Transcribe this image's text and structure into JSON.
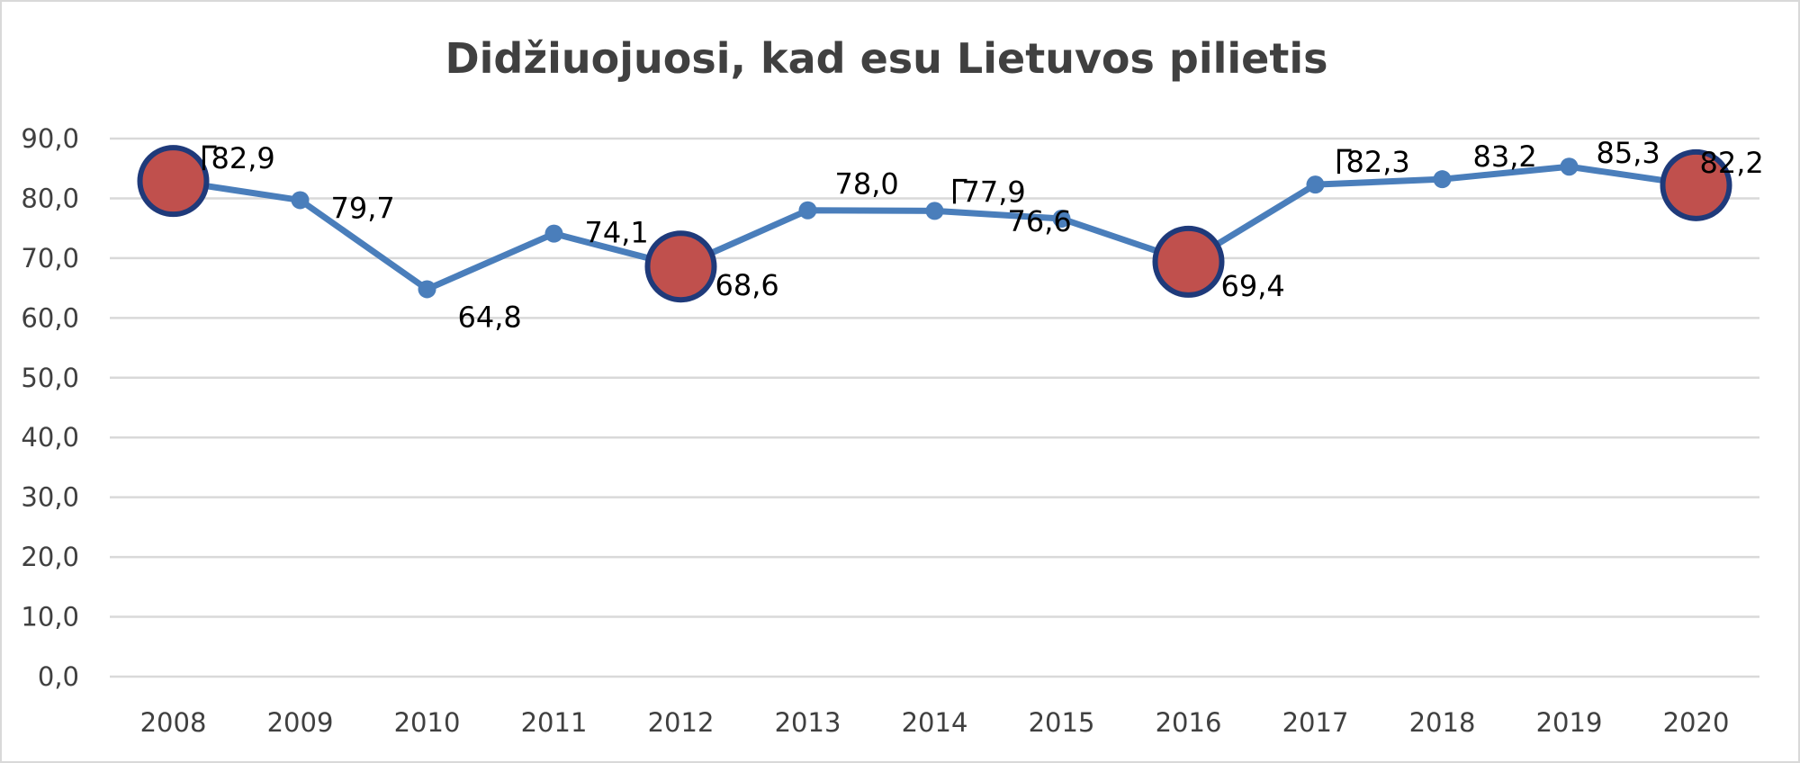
{
  "chart_data": {
    "type": "line",
    "title": "Didžiuojuosi, kad esu Lietuvos pilietis",
    "xlabel": "",
    "ylabel": "",
    "categories": [
      "2008",
      "2009",
      "2010",
      "2011",
      "2012",
      "2013",
      "2014",
      "2015",
      "2016",
      "2017",
      "2018",
      "2019",
      "2020"
    ],
    "series": [
      {
        "values": [
          82.9,
          79.7,
          64.8,
          74.1,
          68.6,
          78.0,
          77.9,
          76.6,
          69.4,
          82.3,
          83.2,
          85.3,
          82.2
        ],
        "labels": [
          "82,9",
          "79,7",
          "64,8",
          "74,1",
          "68,6",
          "78,0",
          "77,9",
          "76,6",
          "69,4",
          "82,3",
          "83,2",
          "85,3",
          "82,2"
        ],
        "highlighted": [
          "2008",
          "2012",
          "2016",
          "2020"
        ]
      }
    ],
    "ylim": [
      0,
      90
    ],
    "yticks": [
      "0,0",
      "10,0",
      "20,0",
      "30,0",
      "40,0",
      "50,0",
      "60,0",
      "70,0",
      "80,0",
      "90,0"
    ],
    "grid": true,
    "legend": "none",
    "colors": {
      "line": "#4a7ebb",
      "marker": "#4a7ebb",
      "highlight_fill": "#c0504d",
      "highlight_stroke": "#1f3a7a",
      "grid": "#d9d9d9"
    }
  }
}
